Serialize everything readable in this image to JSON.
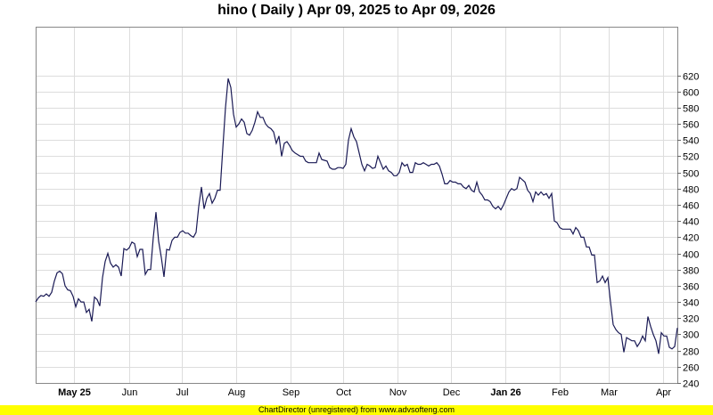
{
  "chart_data": {
    "type": "line",
    "title": "hino ( Daily ) Apr 09, 2025 to Apr 09, 2026",
    "x_range": [
      "2025-04-09",
      "2026-04-09"
    ],
    "ylim": [
      240,
      680
    ],
    "y_ticks": [
      240,
      260,
      280,
      300,
      320,
      340,
      360,
      380,
      400,
      420,
      440,
      460,
      480,
      500,
      520,
      540,
      560,
      580,
      600,
      620
    ],
    "y_axis_side": "right",
    "grid": true,
    "line_color": "#1a1a55",
    "x_ticks": [
      {
        "date": "2025-05-01",
        "label": "May 25",
        "bold": true
      },
      {
        "date": "2025-06-01",
        "label": "Jun",
        "bold": false
      },
      {
        "date": "2025-07-01",
        "label": "Jul",
        "bold": false
      },
      {
        "date": "2025-08-01",
        "label": "Aug",
        "bold": false
      },
      {
        "date": "2025-09-01",
        "label": "Sep",
        "bold": false
      },
      {
        "date": "2025-10-01",
        "label": "Oct",
        "bold": false
      },
      {
        "date": "2025-11-01",
        "label": "Nov",
        "bold": false
      },
      {
        "date": "2025-12-01",
        "label": "Dec",
        "bold": false
      },
      {
        "date": "2026-01-01",
        "label": "Jan 26",
        "bold": true
      },
      {
        "date": "2026-02-01",
        "label": "Feb",
        "bold": false
      },
      {
        "date": "2026-03-01",
        "label": "Mar",
        "bold": false
      },
      {
        "date": "2026-04-01",
        "label": "Apr",
        "bold": false
      }
    ],
    "values": [
      340,
      345,
      348,
      347,
      350,
      347,
      352,
      366,
      376,
      378,
      375,
      360,
      355,
      354,
      347,
      334,
      344,
      340,
      340,
      327,
      331,
      316,
      346,
      343,
      335,
      370,
      390,
      400,
      388,
      383,
      386,
      383,
      372,
      406,
      404,
      407,
      414,
      412,
      396,
      405,
      405,
      374,
      380,
      380,
      420,
      451,
      415,
      395,
      371,
      405,
      404,
      416,
      420,
      420,
      426,
      428,
      425,
      425,
      422,
      420,
      426,
      458,
      482,
      455,
      468,
      474,
      462,
      468,
      478,
      478,
      530,
      580,
      616,
      605,
      572,
      556,
      560,
      566,
      562,
      548,
      546,
      552,
      562,
      575,
      568,
      568,
      560,
      556,
      554,
      550,
      536,
      545,
      520,
      536,
      538,
      533,
      527,
      524,
      522,
      520,
      520,
      514,
      512,
      512,
      512,
      512,
      524,
      516,
      515,
      514,
      506,
      504,
      504,
      506,
      506,
      505,
      510,
      540,
      554,
      544,
      538,
      524,
      510,
      502,
      510,
      508,
      505,
      506,
      520,
      512,
      504,
      508,
      502,
      500,
      496,
      496,
      500,
      512,
      508,
      510,
      500,
      500,
      512,
      510,
      510,
      512,
      510,
      508,
      510,
      510,
      512,
      508,
      498,
      486,
      486,
      490,
      488,
      488,
      486,
      486,
      482,
      480,
      484,
      478,
      476,
      488,
      476,
      472,
      466,
      466,
      464,
      458,
      455,
      458,
      454,
      460,
      468,
      476,
      480,
      478,
      480,
      494,
      491,
      488,
      478,
      474,
      464,
      476,
      472,
      476,
      472,
      474,
      468,
      474,
      440,
      438,
      432,
      430,
      430,
      430,
      430,
      424,
      432,
      428,
      420,
      420,
      408,
      408,
      398,
      398,
      364,
      366,
      372,
      364,
      370,
      340,
      312,
      306,
      302,
      300,
      278,
      296,
      294,
      292,
      292,
      285,
      290,
      298,
      292,
      322,
      310,
      300,
      292,
      276,
      302,
      298,
      298,
      284,
      282,
      285,
      308
    ]
  },
  "footer": {
    "text": "ChartDirector (unregistered) from www.advsofteng.com"
  }
}
